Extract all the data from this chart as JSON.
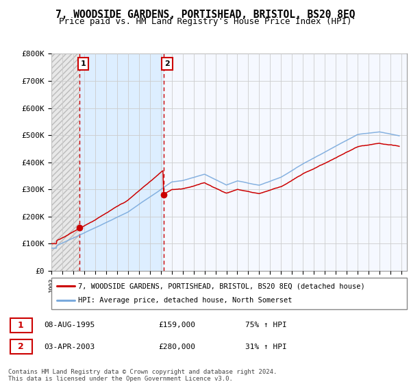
{
  "title": "7, WOODSIDE GARDENS, PORTISHEAD, BRISTOL, BS20 8EQ",
  "subtitle": "Price paid vs. HM Land Registry's House Price Index (HPI)",
  "ylim": [
    0,
    800000
  ],
  "yticks": [
    0,
    100000,
    200000,
    300000,
    400000,
    500000,
    600000,
    700000,
    800000
  ],
  "ytick_labels": [
    "£0",
    "£100K",
    "£200K",
    "£300K",
    "£400K",
    "£500K",
    "£600K",
    "£700K",
    "£800K"
  ],
  "sale1_date": 1995.58,
  "sale1_price": 159000,
  "sale1_label": "1",
  "sale2_date": 2003.25,
  "sale2_price": 280000,
  "sale2_label": "2",
  "legend_line1": "7, WOODSIDE GARDENS, PORTISHEAD, BRISTOL, BS20 8EQ (detached house)",
  "legend_line2": "HPI: Average price, detached house, North Somerset",
  "footer": "Contains HM Land Registry data © Crown copyright and database right 2024.\nThis data is licensed under the Open Government Licence v3.0.",
  "line_color": "#cc0000",
  "hpi_color": "#7aaadd",
  "hatch_color": "#bbbbbb",
  "hatch_face": "#e8e8e8",
  "blue_fill": "#ddeeff",
  "white_fill": "#f5f8ff",
  "grid_color": "#cccccc",
  "title_fontsize": 10.5,
  "subtitle_fontsize": 9,
  "axis_fontsize": 8,
  "xmin": 1993,
  "xmax": 2025.5
}
